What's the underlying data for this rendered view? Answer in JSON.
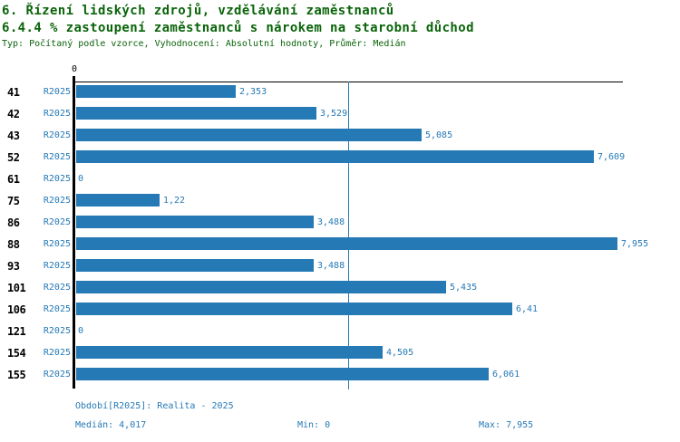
{
  "title": "6. Řízení lidských zdrojů, vzdělávání zaměstnanců",
  "subtitle": "6.4.4 % zastoupení zaměstnanců s nárokem na starobní důchod",
  "meta": "Typ: Počítaný podle vzorce, Vyhodnocení: Absolutní hodnoty, Průměr: Medián",
  "colors": {
    "bar": "#2579b5",
    "title_green": "#0a640a",
    "axis": "#000000",
    "median_line": "#2579b5",
    "value_text": "#2579b5"
  },
  "axis": {
    "zero_label": "0"
  },
  "chart_data": {
    "type": "bar",
    "orientation": "horizontal",
    "categories": [
      "41",
      "42",
      "43",
      "52",
      "61",
      "75",
      "86",
      "88",
      "93",
      "101",
      "106",
      "121",
      "154",
      "155"
    ],
    "series_label": "R2025",
    "values": [
      2.353,
      3.529,
      5.085,
      7.609,
      0,
      1.22,
      3.488,
      7.955,
      3.488,
      5.435,
      6.41,
      0,
      4.505,
      6.061
    ],
    "value_labels": [
      "2,353",
      "3,529",
      "5,085",
      "7,609",
      "0",
      "1,22",
      "3,488",
      "7,955",
      "3,488",
      "5,435",
      "6,41",
      "0",
      "4,505",
      "6,061"
    ],
    "xlim": [
      0,
      7.955
    ],
    "median": 4.017,
    "grid": false,
    "legend": false
  },
  "footer": {
    "period": "Období[R2025]: Realita - 2025",
    "median": "Medián: 4,017",
    "min": "Min: 0",
    "max": "Max: 7,955"
  }
}
